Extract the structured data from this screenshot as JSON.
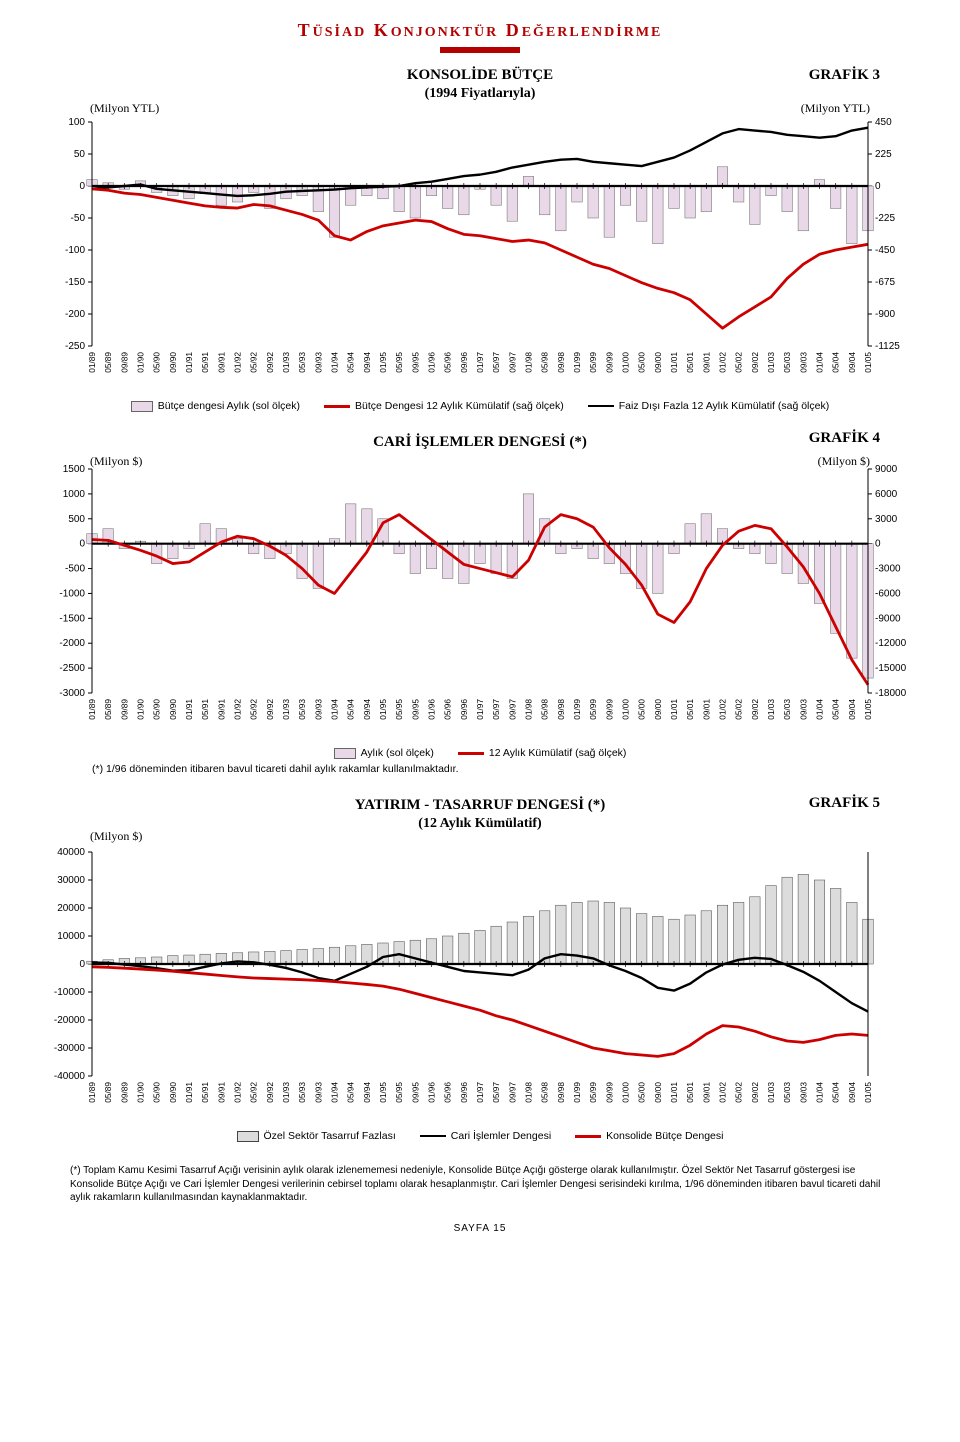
{
  "header": {
    "title_pre": "T",
    "title_word1": "ÜSİAD",
    "title_mid": "K",
    "title_word2": "ONJONKTÜR",
    "title_mid2": "D",
    "title_word3": "EĞERLENDİRME"
  },
  "dates": [
    "01/89",
    "05/89",
    "09/89",
    "01/90",
    "05/90",
    "09/90",
    "01/91",
    "05/91",
    "09/91",
    "01/92",
    "05/92",
    "09/92",
    "01/93",
    "05/93",
    "09/93",
    "01/94",
    "05/94",
    "09/94",
    "01/95",
    "05/95",
    "09/95",
    "01/96",
    "05/96",
    "09/96",
    "01/97",
    "05/97",
    "09/97",
    "01/98",
    "05/98",
    "09/98",
    "01/99",
    "05/99",
    "09/99",
    "01/00",
    "05/00",
    "09/00",
    "01/01",
    "05/01",
    "09/01",
    "01/02",
    "05/02",
    "09/02",
    "01/03",
    "05/03",
    "09/03",
    "01/04",
    "05/04",
    "09/04",
    "01/05"
  ],
  "chart3": {
    "title": "KONSOLİDE BÜTÇE",
    "subtitle": "(1994 Fiyatlarıyla)",
    "graf": "GRAFİK 3",
    "unit_left": "(Milyon YTL)",
    "unit_right": "(Milyon YTL)",
    "left_ticks": [
      100,
      50,
      0,
      -50,
      -100,
      -150,
      -200,
      -250
    ],
    "right_ticks": [
      450,
      225,
      0,
      -225,
      -450,
      -675,
      -900,
      -1125
    ],
    "ylim_left": [
      -250,
      100
    ],
    "ylim_right": [
      -1125,
      450
    ],
    "bar_color": "#e8d8e8",
    "bar_border": "#666",
    "black_line_color": "#000000",
    "red_line_color": "#cc0000",
    "tick_line_color": "#000000",
    "legend": [
      {
        "type": "box",
        "fill": "#e8d8e8",
        "stroke": "#666",
        "label": "Bütçe dengesi Aylık (sol ölçek)"
      },
      {
        "type": "line",
        "color": "#cc0000",
        "w": 3,
        "label": "Bütçe Dengesi 12 Aylık Kümülatif (sağ ölçek)"
      },
      {
        "type": "line",
        "color": "#000000",
        "w": 2.5,
        "label": "Faiz Dışı Fazla 12 Aylık Kümülatif (sağ ölçek)"
      }
    ],
    "bars": [
      10,
      5,
      -5,
      8,
      -10,
      -15,
      -20,
      -12,
      -30,
      -25,
      -10,
      -35,
      -20,
      -15,
      -40,
      -80,
      -30,
      -15,
      -20,
      -40,
      -50,
      -15,
      -35,
      -45,
      -5,
      -30,
      -55,
      15,
      -45,
      -70,
      -25,
      -50,
      -80,
      -30,
      -55,
      -90,
      -35,
      -50,
      -40,
      30,
      -25,
      -60,
      -15,
      -40,
      -70,
      10,
      -35,
      -90,
      -70
    ],
    "red_line": [
      -20,
      -30,
      -50,
      -60,
      -80,
      -100,
      -120,
      -140,
      -150,
      -155,
      -130,
      -140,
      -170,
      -200,
      -240,
      -350,
      -380,
      -320,
      -280,
      -260,
      -240,
      -250,
      -300,
      -340,
      -350,
      -370,
      -390,
      -380,
      -400,
      -450,
      -500,
      -550,
      -580,
      -630,
      -680,
      -720,
      -750,
      -800,
      -900,
      -1000,
      -920,
      -850,
      -780,
      -650,
      -550,
      -480,
      -450,
      -430,
      -410
    ],
    "black_line": [
      -20,
      -10,
      0,
      10,
      -20,
      -30,
      -40,
      -50,
      -60,
      -70,
      -65,
      -55,
      -40,
      -35,
      -30,
      -25,
      -15,
      -10,
      -5,
      0,
      20,
      30,
      50,
      70,
      80,
      100,
      130,
      150,
      170,
      185,
      190,
      170,
      160,
      150,
      140,
      170,
      200,
      250,
      310,
      370,
      400,
      390,
      380,
      360,
      350,
      340,
      350,
      390,
      410
    ]
  },
  "chart4": {
    "title": "CARİ İŞLEMLER DENGESİ (*)",
    "graf": "GRAFİK 4",
    "unit_left": "(Milyon $)",
    "unit_right": "(Milyon $)",
    "left_ticks": [
      1500,
      1000,
      500,
      0,
      -500,
      -1000,
      -1500,
      -2000,
      -2500,
      -3000
    ],
    "right_ticks": [
      9000,
      6000,
      3000,
      0,
      -3000,
      -6000,
      -9000,
      -12000,
      -15000,
      -18000
    ],
    "ylim_left": [
      -3000,
      1500
    ],
    "ylim_right": [
      -18000,
      9000
    ],
    "bar_color": "#e8d8e8",
    "bar_border": "#666",
    "red_line_color": "#cc0000",
    "legend": [
      {
        "type": "box",
        "fill": "#e8d8e8",
        "stroke": "#666",
        "label": "Aylık (sol ölçek)"
      },
      {
        "type": "line",
        "color": "#cc0000",
        "w": 3,
        "label": "12 Aylık Kümülatif  (sağ ölçek)"
      }
    ],
    "bars": [
      200,
      300,
      -100,
      50,
      -400,
      -300,
      -100,
      400,
      300,
      100,
      -200,
      -300,
      -200,
      -700,
      -900,
      100,
      800,
      700,
      500,
      -200,
      -600,
      -500,
      -700,
      -800,
      -400,
      -600,
      -700,
      1000,
      500,
      -200,
      -100,
      -300,
      -400,
      -600,
      -900,
      -1000,
      -200,
      400,
      600,
      300,
      -100,
      -200,
      -400,
      -600,
      -800,
      -1200,
      -1800,
      -2300,
      -2700
    ],
    "red_line": [
      500,
      400,
      -200,
      -800,
      -1500,
      -2400,
      -2200,
      -1000,
      200,
      900,
      600,
      -300,
      -1400,
      -3000,
      -5000,
      -6000,
      -3500,
      -1000,
      2500,
      3500,
      2000,
      500,
      -1000,
      -2500,
      -3000,
      -3500,
      -4000,
      -2000,
      2000,
      3500,
      3000,
      2000,
      -500,
      -2500,
      -5000,
      -8500,
      -9500,
      -7000,
      -3000,
      -200,
      1500,
      2200,
      1800,
      -400,
      -2800,
      -6000,
      -10000,
      -14000,
      -17000
    ],
    "footnote": "(*) 1/96 döneminden itibaren bavul ticareti dahil aylık rakamlar kullanılmaktadır."
  },
  "chart5": {
    "title": "YATIRIM - TASARRUF DENGESİ (*)",
    "subtitle": "(12 Aylık Kümülatif)",
    "graf": "GRAFİK 5",
    "unit_left": "(Milyon $)",
    "left_ticks": [
      40000,
      30000,
      20000,
      10000,
      0,
      -10000,
      -20000,
      -30000,
      -40000
    ],
    "ylim_left": [
      -40000,
      40000
    ],
    "bar_color": "#dcdcdc",
    "bar_border": "#444",
    "black_line_color": "#000000",
    "red_line_color": "#cc0000",
    "legend": [
      {
        "type": "box",
        "fill": "#dcdcdc",
        "stroke": "#444",
        "label": "Özel Sektör Tasarruf Fazlası"
      },
      {
        "type": "line",
        "color": "#000000",
        "w": 2.5,
        "label": "Cari İşlemler Dengesi"
      },
      {
        "type": "line",
        "color": "#cc0000",
        "w": 3,
        "label": "Konsolide Bütçe Dengesi"
      }
    ],
    "bars": [
      1000,
      1500,
      2000,
      2200,
      2500,
      3000,
      3200,
      3500,
      3800,
      4000,
      4300,
      4500,
      4800,
      5200,
      5500,
      6000,
      6500,
      7000,
      7500,
      8000,
      8500,
      9000,
      10000,
      11000,
      12000,
      13500,
      15000,
      17000,
      19000,
      21000,
      22000,
      22500,
      22000,
      20000,
      18000,
      17000,
      16000,
      17500,
      19000,
      21000,
      22000,
      24000,
      28000,
      31000,
      32000,
      30000,
      27000,
      22000,
      16000
    ],
    "black_line": [
      500,
      400,
      -200,
      -800,
      -1500,
      -2400,
      -2200,
      -1000,
      200,
      900,
      600,
      -300,
      -1400,
      -3000,
      -5000,
      -6000,
      -3500,
      -1000,
      2500,
      3500,
      2000,
      500,
      -1000,
      -2500,
      -3000,
      -3500,
      -4000,
      -2000,
      2000,
      3500,
      3000,
      2000,
      -500,
      -2500,
      -5000,
      -8500,
      -9500,
      -7000,
      -3000,
      -200,
      1500,
      2200,
      1800,
      -400,
      -2800,
      -6000,
      -10000,
      -14000,
      -17000
    ],
    "red_line": [
      -1000,
      -1200,
      -1500,
      -1800,
      -2200,
      -2600,
      -3100,
      -3600,
      -4100,
      -4600,
      -5000,
      -5200,
      -5400,
      -5600,
      -5900,
      -6300,
      -6800,
      -7300,
      -7900,
      -9000,
      -10500,
      -12000,
      -13500,
      -15000,
      -16500,
      -18500,
      -20000,
      -22000,
      -24000,
      -26000,
      -28000,
      -30000,
      -31000,
      -32000,
      -32500,
      -33000,
      -32000,
      -29000,
      -25000,
      -22000,
      -22500,
      -24000,
      -26000,
      -27500,
      -28000,
      -27000,
      -25500,
      -25000,
      -25500
    ]
  },
  "bottom_note": "(*) Toplam Kamu Kesimi Tasarruf Açığı verisinin aylık olarak izlenememesi nedeniyle, Konsolide Bütçe Açığı gösterge olarak kullanılmıştır. Özel Sektör Net Tasarruf göstergesi ise Konsolide Bütçe Açığı ve Cari İşlemler Dengesi verilerinin cebirsel toplamı olarak hesaplanmıştır. Cari İşlemler Dengesi serisindeki kırılma, 1/96 döneminden itibaren bavul ticareti dahil aylık rakamların kullanılmasından kaynaklanmaktadır.",
  "page_num": "SAYFA   15"
}
